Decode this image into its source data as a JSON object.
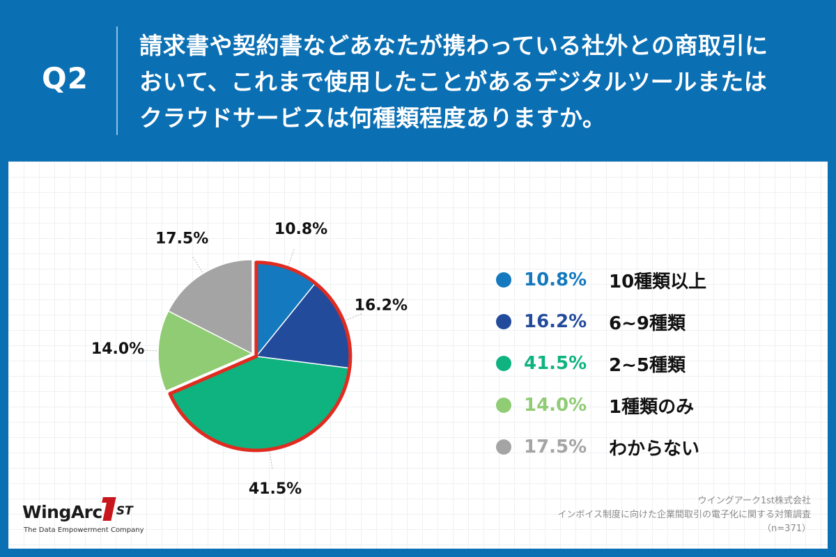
{
  "question": {
    "label": "Q2",
    "lines": [
      "請求書や契約書などあなたが携わっている社外との商取引に",
      "おいて、これまで使用したことがあるデジタルツールまたは",
      "クラウドサービスは何種類程度ありますか。"
    ]
  },
  "chart_data": {
    "type": "pie",
    "categories": [
      "10種類以上",
      "6~9種類",
      "2~5種類",
      "1種類のみ",
      "わからない"
    ],
    "values": [
      10.8,
      16.2,
      41.5,
      14.0,
      17.5
    ],
    "value_labels": [
      "10.8%",
      "16.2%",
      "41.5%",
      "14.0%",
      "17.5%"
    ],
    "colors": [
      "#1479be",
      "#234b9c",
      "#0eb37f",
      "#8fcc74",
      "#a4a4a4"
    ],
    "highlight": {
      "indices": [
        0,
        1,
        2
      ],
      "color": "#e02b20"
    },
    "start_angle_deg": 0,
    "direction": "clockwise",
    "legend_placement": "right",
    "grid": true
  },
  "legend": {
    "items": [
      {
        "pct": "10.8%",
        "label": "10種類以上",
        "color": "#1479be"
      },
      {
        "pct": "16.2%",
        "label": "6~9種類",
        "color": "#234b9c"
      },
      {
        "pct": "41.5%",
        "label": "2~5種類",
        "color": "#0eb37f"
      },
      {
        "pct": "14.0%",
        "label": "1種類のみ",
        "color": "#8fcc74"
      },
      {
        "pct": "17.5%",
        "label": "わからない",
        "color": "#a4a4a4"
      }
    ]
  },
  "logo": {
    "word": "WingArc",
    "suffix": "ST",
    "tagline": "The Data Empowerment Company"
  },
  "source": {
    "lines": [
      "ウイングアーク1st株式会社",
      "インボイス制度に向けた企業間取引の電子化に関する対策調査",
      "（n=371）"
    ]
  }
}
